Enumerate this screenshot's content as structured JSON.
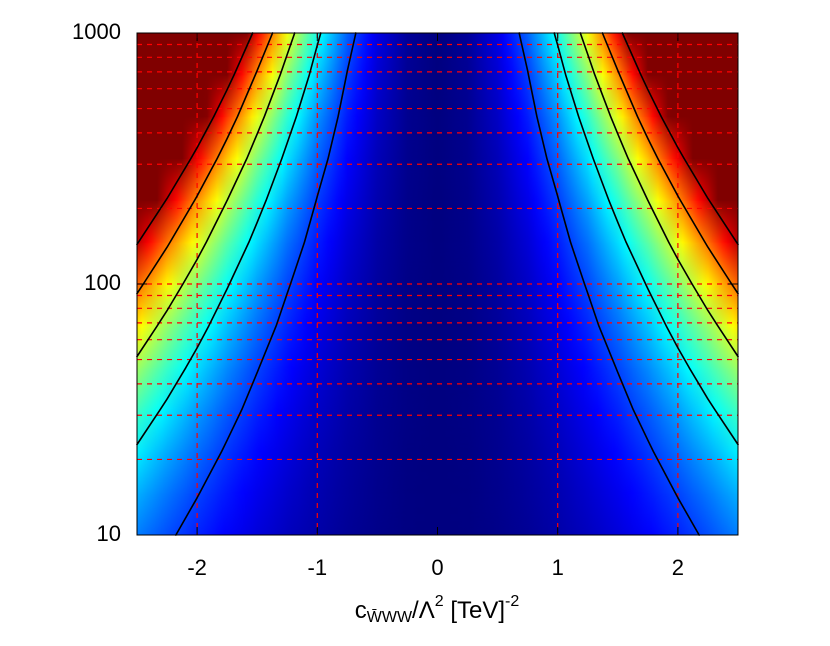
{
  "chart_data": {
    "type": "heatmap",
    "xlabel": {
      "base": "c",
      "subscript": "W̄WW",
      "rest": "/Λ",
      "sup1": "2",
      "rest2": " [TeV]",
      "sup2": "-2"
    },
    "x": [
      -2.5,
      -2.25,
      -2,
      -1.75,
      -1.5,
      -1.25,
      -1,
      -0.75,
      -0.5,
      -0.25,
      0,
      0.25,
      0.5,
      0.75,
      1,
      1.25,
      1.5,
      1.75,
      2,
      2.25,
      2.5
    ],
    "y": [
      10,
      14.68,
      21.54,
      31.62,
      46.42,
      68.13,
      100,
      146.8,
      215.4,
      316.2,
      464.2,
      681.3,
      1000
    ],
    "z": [
      [
        19.8,
        16.0,
        12.6,
        9.7,
        7.1,
        4.9,
        3.2,
        1.8,
        0.8,
        0.2,
        0,
        0.2,
        0.8,
        1.8,
        3.2,
        4.9,
        7.1,
        9.7,
        12.6,
        16.0,
        19.8
      ],
      [
        23.9,
        19.4,
        15.3,
        11.7,
        8.6,
        6.0,
        3.8,
        2.2,
        1.0,
        0.2,
        0,
        0.2,
        1.0,
        2.2,
        3.8,
        6.0,
        8.6,
        11.7,
        15.3,
        19.4,
        23.9
      ],
      [
        29.0,
        23.5,
        18.6,
        14.2,
        10.4,
        7.3,
        4.6,
        2.6,
        1.2,
        0.3,
        0,
        0.3,
        1.2,
        2.6,
        4.6,
        7.3,
        10.4,
        14.2,
        18.6,
        23.5,
        29.0
      ],
      [
        35.1,
        28.5,
        22.5,
        17.2,
        12.7,
        8.8,
        5.6,
        3.2,
        1.4,
        0.4,
        0,
        0.4,
        1.4,
        3.2,
        5.6,
        8.8,
        12.7,
        17.2,
        22.5,
        28.5,
        35.1
      ],
      [
        42.6,
        34.5,
        27.3,
        20.9,
        15.3,
        10.6,
        6.8,
        3.8,
        1.7,
        0.4,
        0,
        0.4,
        1.7,
        3.8,
        6.8,
        10.6,
        15.3,
        20.9,
        27.3,
        34.5,
        42.6
      ],
      [
        51.6,
        41.8,
        33.0,
        25.3,
        18.6,
        12.9,
        8.3,
        4.6,
        2.1,
        0.5,
        0,
        0.5,
        2.1,
        4.6,
        8.3,
        12.9,
        18.6,
        25.3,
        33.0,
        41.8,
        51.6
      ],
      [
        62.5,
        50.6,
        40.0,
        30.6,
        22.5,
        15.6,
        10.0,
        5.6,
        2.5,
        0.6,
        0,
        0.6,
        2.5,
        5.6,
        10.0,
        15.6,
        22.5,
        30.6,
        40.0,
        50.6,
        62.5
      ],
      [
        75.7,
        61.3,
        48.5,
        37.1,
        27.3,
        18.9,
        12.1,
        6.8,
        3.0,
        0.8,
        0,
        0.8,
        3.0,
        6.8,
        12.1,
        18.9,
        27.3,
        37.1,
        48.5,
        61.3,
        75.7
      ],
      [
        91.7,
        74.3,
        58.7,
        45.0,
        33.0,
        22.9,
        14.7,
        8.3,
        3.7,
        0.9,
        0,
        0.9,
        3.7,
        8.3,
        14.7,
        22.9,
        33.0,
        45.0,
        58.7,
        74.3,
        91.7
      ],
      [
        111.1,
        90.0,
        71.1,
        54.5,
        40.0,
        27.8,
        17.8,
        10.0,
        4.4,
        1.1,
        0,
        1.1,
        4.4,
        10.0,
        17.8,
        27.8,
        40.0,
        54.5,
        71.1,
        90.0,
        111.1
      ],
      [
        134.7,
        109.1,
        86.2,
        66.0,
        48.5,
        33.7,
        21.5,
        12.1,
        5.4,
        1.3,
        0,
        1.3,
        5.4,
        12.1,
        21.5,
        33.7,
        48.5,
        66.0,
        86.2,
        109.1,
        134.7
      ],
      [
        163.1,
        132.1,
        104.4,
        79.9,
        58.7,
        40.8,
        26.1,
        14.7,
        6.5,
        1.6,
        0,
        1.6,
        6.5,
        14.7,
        26.1,
        40.8,
        58.7,
        79.9,
        104.4,
        132.1,
        163.1
      ],
      [
        197.6,
        160.1,
        126.5,
        96.8,
        71.1,
        49.4,
        31.6,
        17.8,
        7.9,
        2.0,
        0,
        2.0,
        7.9,
        17.8,
        31.6,
        49.4,
        71.1,
        96.8,
        126.5,
        160.1,
        197.6
      ]
    ],
    "zlim": [
      0,
      80
    ],
    "colormap": "jet",
    "contour_levels": [
      15,
      30,
      45,
      60,
      75
    ],
    "contour_color": "#000000",
    "xlim": [
      -2.5,
      2.5
    ],
    "xticks": [
      -2,
      -1,
      0,
      1,
      2
    ],
    "ylim": [
      10,
      1000
    ],
    "yticks": [
      10,
      100,
      1000
    ],
    "log_y": true,
    "grid": true,
    "grid_color": "#ff0000",
    "xgrid": [
      -2,
      -1,
      1,
      2
    ],
    "ygrid": [
      20,
      30,
      40,
      50,
      60,
      70,
      80,
      90,
      100,
      200,
      300,
      400,
      500,
      600,
      700,
      800,
      900
    ]
  }
}
